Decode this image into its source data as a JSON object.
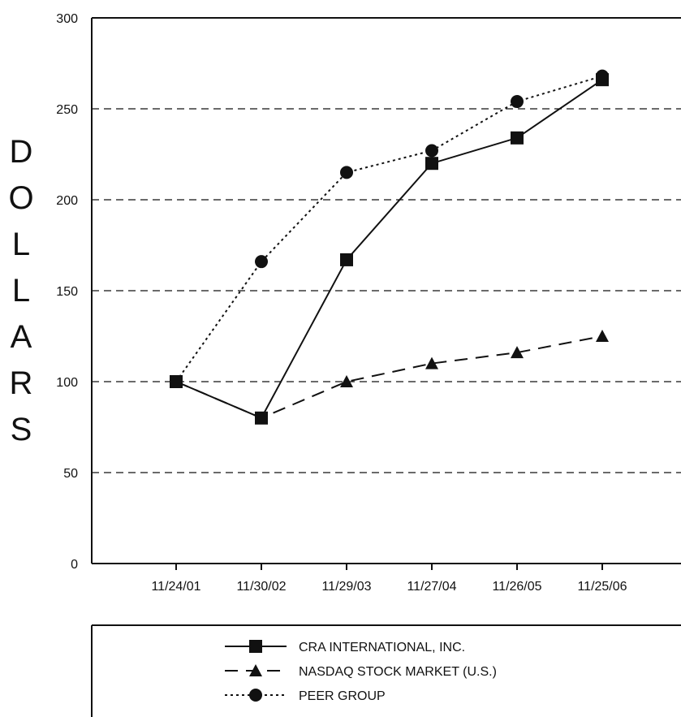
{
  "chart_data": {
    "type": "line",
    "ylabel": "DOLLARS",
    "ylim": [
      0,
      300
    ],
    "yticks": [
      0,
      50,
      100,
      150,
      200,
      250,
      300
    ],
    "grid": "horizontal-dashed",
    "categories": [
      "11/24/01",
      "11/30/02",
      "11/29/03",
      "11/27/04",
      "11/26/05",
      "11/25/06"
    ],
    "series": [
      {
        "name": "CRA INTERNATIONAL, INC.",
        "style": "solid",
        "marker": "square",
        "values": [
          100,
          80,
          167,
          220,
          234,
          266
        ]
      },
      {
        "name": "NASDAQ STOCK MARKET (U.S.)",
        "style": "dashed",
        "marker": "triangle",
        "values": [
          100,
          80,
          100,
          110,
          116,
          125
        ]
      },
      {
        "name": "PEER GROUP",
        "style": "dotted",
        "marker": "circle",
        "values": [
          100,
          166,
          215,
          227,
          254,
          268
        ]
      }
    ],
    "legend_position": "bottom"
  }
}
